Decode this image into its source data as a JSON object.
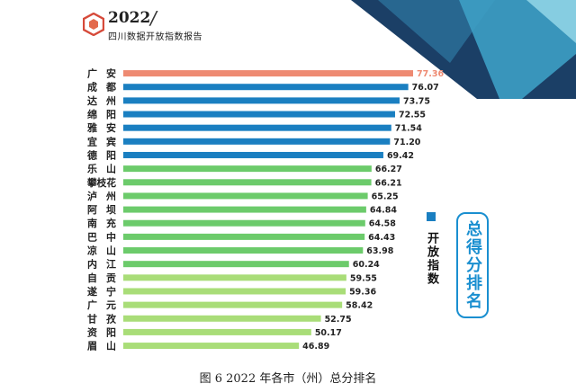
{
  "header": {
    "year": "2022",
    "title": "四川数据开放指数报告"
  },
  "legend": {
    "label": "开放指数",
    "color": "#1a7fc1"
  },
  "side_title": "总得分排名",
  "caption": "图 6 2022 年各市（州）总分排名",
  "colors": {
    "top": "#ee8a72",
    "blue": "#1a7fc1",
    "green": "#6ccb6b",
    "light_green": "#a9dd78"
  },
  "chart_data": {
    "type": "bar",
    "orientation": "horizontal",
    "categories": [
      "广安",
      "成都",
      "达州",
      "绵阳",
      "雅安",
      "宜宾",
      "德阳",
      "乐山",
      "攀枝花",
      "泸州",
      "阿坝",
      "南充",
      "巴中",
      "凉山",
      "内江",
      "自贡",
      "遂宁",
      "广元",
      "甘孜",
      "资阳",
      "眉山"
    ],
    "values": [
      77.36,
      76.07,
      73.75,
      72.55,
      71.54,
      71.2,
      69.42,
      66.27,
      66.21,
      65.25,
      64.84,
      64.58,
      64.43,
      63.98,
      60.24,
      59.55,
      59.36,
      58.42,
      52.75,
      50.17,
      46.89
    ],
    "labels": [
      "77.36",
      "76.07",
      "73.75",
      "72.55",
      "71.54",
      "71.20",
      "69.42",
      "66.27",
      "66.21",
      "65.25",
      "64.84",
      "64.58",
      "64.43",
      "63.98",
      "60.24",
      "59.55",
      "59.36",
      "58.42",
      "52.75",
      "50.17",
      "46.89"
    ],
    "color_groups": [
      "top",
      "blue",
      "blue",
      "blue",
      "blue",
      "blue",
      "blue",
      "green",
      "green",
      "green",
      "green",
      "green",
      "green",
      "green",
      "green",
      "light_green",
      "light_green",
      "light_green",
      "light_green",
      "light_green",
      "light_green"
    ],
    "series": [
      {
        "name": "开放指数",
        "values": [
          77.36,
          76.07,
          73.75,
          72.55,
          71.54,
          71.2,
          69.42,
          66.27,
          66.21,
          65.25,
          64.84,
          64.58,
          64.43,
          63.98,
          60.24,
          59.55,
          59.36,
          58.42,
          52.75,
          50.17,
          46.89
        ]
      }
    ],
    "xlim": [
      0,
      77.36
    ],
    "grid": false,
    "legend_position": "right"
  }
}
